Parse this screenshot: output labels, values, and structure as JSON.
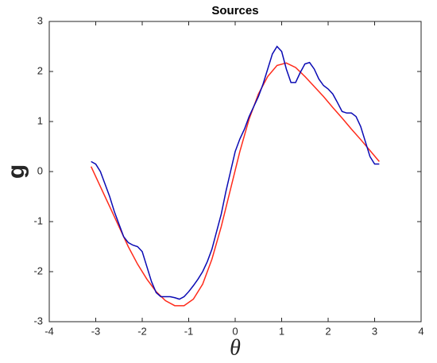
{
  "chart_data": {
    "type": "line",
    "title": "Sources",
    "x_label": "θ",
    "y_label": "g",
    "xlim": [
      -4,
      4
    ],
    "ylim": [
      -3,
      3
    ],
    "xticks": [
      -4,
      -3,
      -2,
      -1,
      0,
      1,
      2,
      3,
      4
    ],
    "yticks": [
      -3,
      -2,
      -1,
      0,
      1,
      2,
      3
    ],
    "series": [
      {
        "color": "#ff2a1a",
        "x": [
          -3.1,
          -2.9,
          -2.7,
          -2.5,
          -2.3,
          -2.1,
          -1.9,
          -1.7,
          -1.5,
          -1.3,
          -1.1,
          -0.9,
          -0.7,
          -0.5,
          -0.3,
          -0.1,
          0.1,
          0.3,
          0.5,
          0.7,
          0.9,
          1.1,
          1.3,
          1.5,
          1.7,
          1.9,
          2.1,
          2.3,
          2.5,
          2.7,
          2.9,
          3.1
        ],
        "values": [
          0.1,
          -0.3,
          -0.7,
          -1.1,
          -1.5,
          -1.85,
          -2.15,
          -2.4,
          -2.58,
          -2.68,
          -2.68,
          -2.55,
          -2.25,
          -1.75,
          -1.1,
          -0.35,
          0.4,
          1.05,
          1.55,
          1.9,
          2.12,
          2.17,
          2.08,
          1.9,
          1.7,
          1.5,
          1.28,
          1.07,
          0.85,
          0.64,
          0.42,
          0.2
        ]
      },
      {
        "color": "#0a0ab4",
        "x": [
          -3.1,
          -3.0,
          -2.9,
          -2.8,
          -2.7,
          -2.6,
          -2.5,
          -2.4,
          -2.3,
          -2.2,
          -2.1,
          -2.0,
          -1.9,
          -1.8,
          -1.7,
          -1.6,
          -1.5,
          -1.4,
          -1.3,
          -1.2,
          -1.1,
          -1.0,
          -0.9,
          -0.8,
          -0.7,
          -0.6,
          -0.5,
          -0.4,
          -0.3,
          -0.2,
          -0.1,
          0.0,
          0.1,
          0.2,
          0.3,
          0.4,
          0.5,
          0.6,
          0.7,
          0.8,
          0.9,
          1.0,
          1.1,
          1.2,
          1.3,
          1.4,
          1.5,
          1.6,
          1.7,
          1.8,
          1.9,
          2.0,
          2.1,
          2.2,
          2.3,
          2.4,
          2.5,
          2.6,
          2.7,
          2.8,
          2.9,
          3.0,
          3.1
        ],
        "values": [
          0.2,
          0.15,
          0.0,
          -0.25,
          -0.5,
          -0.8,
          -1.05,
          -1.3,
          -1.42,
          -1.47,
          -1.5,
          -1.6,
          -1.9,
          -2.2,
          -2.42,
          -2.5,
          -2.5,
          -2.5,
          -2.52,
          -2.55,
          -2.5,
          -2.4,
          -2.28,
          -2.15,
          -2.0,
          -1.8,
          -1.55,
          -1.2,
          -0.85,
          -0.4,
          0.0,
          0.4,
          0.65,
          0.85,
          1.1,
          1.3,
          1.5,
          1.75,
          2.05,
          2.35,
          2.5,
          2.4,
          2.05,
          1.78,
          1.78,
          1.98,
          2.15,
          2.18,
          2.05,
          1.85,
          1.72,
          1.65,
          1.55,
          1.38,
          1.2,
          1.17,
          1.17,
          1.1,
          0.9,
          0.6,
          0.3,
          0.15,
          0.15
        ]
      }
    ]
  }
}
